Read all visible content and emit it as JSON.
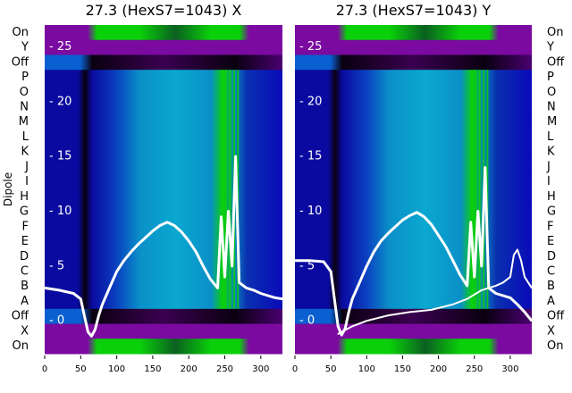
{
  "chart_data": {
    "type": "heatmap",
    "ylabel": "Dipole",
    "categories": [
      "On",
      "Y",
      "Off",
      "P",
      "O",
      "N",
      "M",
      "L",
      "K",
      "J",
      "I",
      "H",
      "G",
      "F",
      "E",
      "D",
      "C",
      "B",
      "A",
      "Off",
      "X",
      "On"
    ],
    "x_ticks": [
      0,
      50,
      100,
      150,
      200,
      250,
      300
    ],
    "xlim": [
      0,
      330
    ],
    "y_overlay_ticks": [
      0,
      5,
      10,
      15,
      20,
      25
    ],
    "y_overlay_range": [
      -3,
      27
    ],
    "colors": {
      "purple": "#7a0aa0",
      "blue": "#0a1ab8",
      "cyan": "#0aa0c8",
      "green": "#0ad00a",
      "black": "#0a0010",
      "white": "#ffffff"
    },
    "panels": [
      {
        "title": "27.3 (HexS7=1043) X",
        "series": [
          {
            "x": [
              0,
              20,
              40,
              50,
              55,
              60,
              65,
              70,
              75,
              80,
              90,
              100,
              110,
              120,
              130,
              140,
              150,
              160,
              170,
              180,
              190,
              200,
              210,
              220,
              230,
              240,
              245,
              250,
              255,
              260,
              265,
              270,
              280,
              290,
              300,
              310,
              320,
              330
            ],
            "y": [
              3.0,
              2.8,
              2.5,
              2.0,
              0.5,
              -1.0,
              -1.4,
              -0.8,
              0.5,
              1.5,
              3.0,
              4.5,
              5.5,
              6.3,
              7.0,
              7.6,
              8.2,
              8.7,
              9.0,
              8.7,
              8.1,
              7.3,
              6.3,
              5.0,
              3.8,
              3.0,
              9.5,
              4.0,
              10.0,
              5.0,
              15.0,
              3.5,
              3.0,
              2.8,
              2.5,
              2.3,
              2.1,
              2.0
            ]
          }
        ]
      },
      {
        "title": "27.3 (HexS7=1043) Y",
        "series": [
          {
            "x": [
              0,
              20,
              40,
              50,
              55,
              60,
              65,
              70,
              75,
              80,
              90,
              100,
              110,
              120,
              130,
              140,
              150,
              160,
              170,
              180,
              190,
              200,
              210,
              220,
              230,
              240,
              245,
              250,
              255,
              260,
              265,
              270,
              280,
              290,
              300,
              310,
              320,
              330
            ],
            "y": [
              5.5,
              5.5,
              5.4,
              4.5,
              2.0,
              -0.5,
              -1.3,
              -0.7,
              0.8,
              2.0,
              3.5,
              5.0,
              6.3,
              7.3,
              8.0,
              8.6,
              9.2,
              9.6,
              9.9,
              9.5,
              8.8,
              7.8,
              6.8,
              5.5,
              4.2,
              3.2,
              9.0,
              4.0,
              10.0,
              5.0,
              14.0,
              3.0,
              2.5,
              2.3,
              2.1,
              1.5,
              0.8,
              0.0
            ]
          },
          {
            "x": [
              60,
              80,
              100,
              130,
              160,
              190,
              220,
              240,
              260,
              280,
              290,
              300,
              305,
              310,
              315,
              320,
              325,
              330
            ],
            "y": [
              -1.2,
              -0.5,
              0.0,
              0.5,
              0.8,
              1.0,
              1.5,
              2.0,
              2.8,
              3.2,
              3.5,
              4.0,
              6.0,
              6.5,
              5.5,
              4.0,
              3.5,
              3.0
            ]
          }
        ]
      }
    ]
  }
}
